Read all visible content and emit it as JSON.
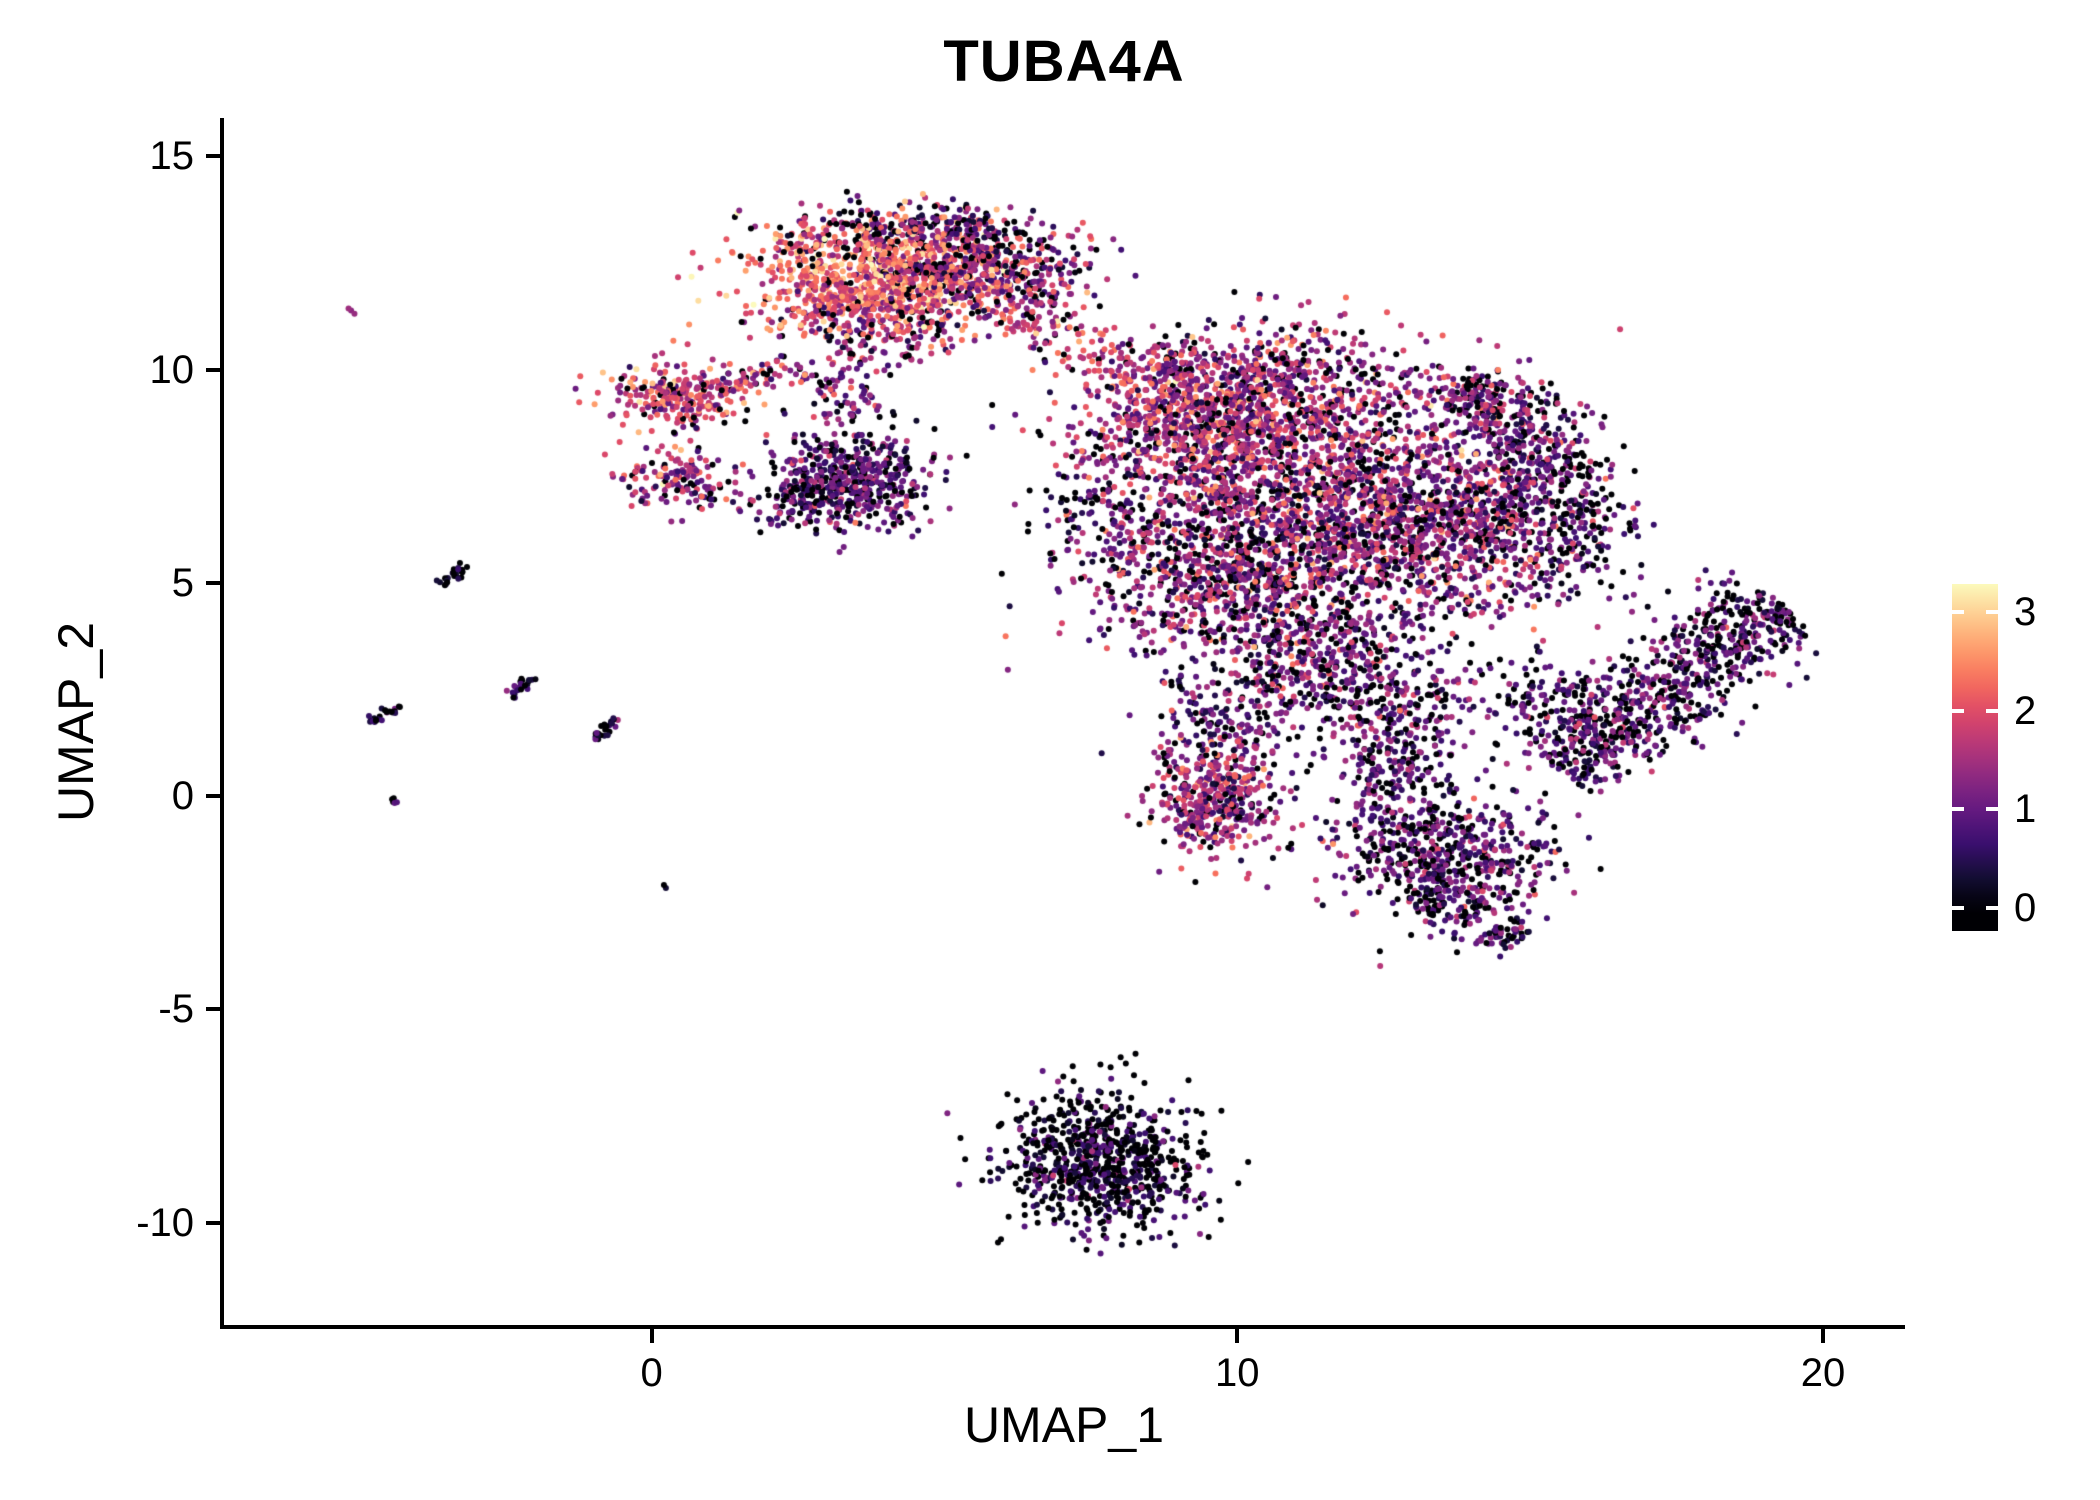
{
  "chart_data": {
    "type": "scatter",
    "title": "TUBA4A",
    "xlabel": "UMAP_1",
    "ylabel": "UMAP_2",
    "x_range": [
      -7.3,
      21.4
    ],
    "y_range": [
      -12.4,
      15.9
    ],
    "x_ticks": [
      0,
      10,
      20
    ],
    "y_ticks": [
      -10,
      -5,
      0,
      5,
      10,
      15
    ],
    "grid": false,
    "background": "#ffffff",
    "point_radius_px": 3,
    "seed": 1337,
    "colormap": {
      "name": "magma",
      "stops": [
        [
          0.0,
          "#000004"
        ],
        [
          0.1,
          "#140e36"
        ],
        [
          0.2,
          "#3b0f70"
        ],
        [
          0.3,
          "#641a80"
        ],
        [
          0.4,
          "#8c2981"
        ],
        [
          0.5,
          "#b73779"
        ],
        [
          0.6,
          "#de4968"
        ],
        [
          0.7,
          "#f7705c"
        ],
        [
          0.8,
          "#fe9f6d"
        ],
        [
          0.9,
          "#fece91"
        ],
        [
          1.0,
          "#fcfdbf"
        ]
      ]
    },
    "color_scale": {
      "vmin": 0,
      "vmax": 3.3
    },
    "legend": {
      "position": "right",
      "ticks": [
        0,
        1,
        2,
        3
      ],
      "bar_vmin": -0.23,
      "bar_vmax": 3.28
    },
    "clusters": [
      {
        "type": "blob",
        "cx": 3.8,
        "cy": 12.2,
        "sx": 1.05,
        "sy": 0.6,
        "n": 900,
        "zero": 0.05,
        "mean": 2.2,
        "sd": 0.5
      },
      {
        "type": "blob",
        "cx": 5.6,
        "cy": 12.4,
        "sx": 0.8,
        "sy": 0.6,
        "n": 380,
        "zero": 0.15,
        "mean": 1.2,
        "sd": 0.6
      },
      {
        "type": "blob",
        "cx": 4.3,
        "cy": 13.3,
        "sx": 1.2,
        "sy": 0.3,
        "n": 220,
        "zero": 0.2,
        "mean": 1.0,
        "sd": 0.6
      },
      {
        "type": "blob",
        "cx": 4.0,
        "cy": 11.0,
        "sx": 0.9,
        "sy": 0.45,
        "n": 220,
        "zero": 0.12,
        "mean": 1.5,
        "sd": 0.6
      },
      {
        "type": "blob",
        "cx": 6.7,
        "cy": 12.1,
        "sx": 0.5,
        "sy": 0.5,
        "n": 70,
        "zero": 0.2,
        "mean": 1.2,
        "sd": 0.5
      },
      {
        "type": "streak",
        "x1": 5.9,
        "y1": 11.5,
        "x2": 8.2,
        "y2": 9.8,
        "w": 0.3,
        "n": 110,
        "zero": 0.08,
        "mean": 1.8,
        "sd": 0.5
      },
      {
        "type": "blob",
        "cx": 0.45,
        "cy": 9.4,
        "sx": 0.55,
        "sy": 0.38,
        "n": 260,
        "zero": 0.1,
        "mean": 1.9,
        "sd": 0.55
      },
      {
        "type": "streak",
        "x1": 1.1,
        "y1": 9.6,
        "x2": 2.6,
        "y2": 10.1,
        "w": 0.18,
        "n": 60,
        "zero": 0.15,
        "mean": 1.5,
        "sd": 0.5
      },
      {
        "type": "blob",
        "cx": 0.5,
        "cy": 7.4,
        "sx": 0.5,
        "sy": 0.38,
        "n": 150,
        "zero": 0.15,
        "mean": 1.5,
        "sd": 0.6
      },
      {
        "type": "blob",
        "cx": 3.4,
        "cy": 7.4,
        "sx": 0.68,
        "sy": 0.58,
        "n": 480,
        "zero": 0.18,
        "mean": 0.95,
        "sd": 0.5
      },
      {
        "type": "blob",
        "cx": 2.5,
        "cy": 7.0,
        "sx": 0.3,
        "sy": 0.4,
        "n": 80,
        "zero": 0.3,
        "mean": 0.6,
        "sd": 0.4
      },
      {
        "type": "blob",
        "cx": 3.3,
        "cy": 9.3,
        "sx": 0.45,
        "sy": 0.7,
        "n": 90,
        "zero": 0.2,
        "mean": 1.1,
        "sd": 0.5
      },
      {
        "type": "blob",
        "cx": 8.7,
        "cy": 10.2,
        "sx": 0.35,
        "sy": 0.4,
        "n": 50,
        "zero": 0.1,
        "mean": 1.5,
        "sd": 0.5
      },
      {
        "type": "blob",
        "cx": 9.4,
        "cy": 8.7,
        "sx": 1.0,
        "sy": 0.9,
        "n": 850,
        "zero": 0.12,
        "mean": 1.55,
        "sd": 0.55
      },
      {
        "type": "blob",
        "cx": 10.8,
        "cy": 9.6,
        "sx": 1.2,
        "sy": 0.75,
        "n": 550,
        "zero": 0.12,
        "mean": 1.45,
        "sd": 0.55
      },
      {
        "type": "blob",
        "cx": 11.8,
        "cy": 6.8,
        "sx": 1.6,
        "sy": 1.2,
        "n": 1400,
        "zero": 0.15,
        "mean": 1.35,
        "sd": 0.6
      },
      {
        "type": "blob",
        "cx": 9.6,
        "cy": 5.2,
        "sx": 1.1,
        "sy": 1.1,
        "n": 700,
        "zero": 0.18,
        "mean": 1.2,
        "sd": 0.6
      },
      {
        "type": "blob",
        "cx": 13.8,
        "cy": 6.2,
        "sx": 1.1,
        "sy": 1.1,
        "n": 600,
        "zero": 0.2,
        "mean": 1.1,
        "sd": 0.55
      },
      {
        "type": "blob",
        "cx": 14.1,
        "cy": 9.3,
        "sx": 0.45,
        "sy": 0.4,
        "n": 160,
        "zero": 0.2,
        "mean": 1.2,
        "sd": 0.55
      },
      {
        "type": "blob",
        "cx": 15.0,
        "cy": 8.2,
        "sx": 0.55,
        "sy": 0.7,
        "n": 260,
        "zero": 0.25,
        "mean": 1.1,
        "sd": 0.5
      },
      {
        "type": "blob",
        "cx": 15.8,
        "cy": 6.3,
        "sx": 0.45,
        "sy": 0.8,
        "n": 180,
        "zero": 0.35,
        "mean": 0.8,
        "sd": 0.5
      },
      {
        "type": "blob",
        "cx": 7.8,
        "cy": 6.8,
        "sx": 0.6,
        "sy": 0.8,
        "n": 120,
        "zero": 0.35,
        "mean": 0.8,
        "sd": 0.5
      },
      {
        "type": "blob",
        "cx": 11.3,
        "cy": 3.4,
        "sx": 1.0,
        "sy": 0.8,
        "n": 450,
        "zero": 0.22,
        "mean": 1.1,
        "sd": 0.55
      },
      {
        "type": "blob",
        "cx": 12.6,
        "cy": 1.8,
        "sx": 0.8,
        "sy": 0.8,
        "n": 300,
        "zero": 0.25,
        "mean": 1.0,
        "sd": 0.5
      },
      {
        "type": "blob",
        "cx": 9.7,
        "cy": 1.6,
        "sx": 0.6,
        "sy": 0.6,
        "n": 140,
        "zero": 0.25,
        "mean": 1.0,
        "sd": 0.5
      },
      {
        "type": "blob",
        "cx": 9.6,
        "cy": -0.1,
        "sx": 0.55,
        "sy": 0.65,
        "n": 400,
        "zero": 0.12,
        "mean": 1.4,
        "sd": 0.6
      },
      {
        "type": "blob",
        "cx": 12.6,
        "cy": 0.3,
        "sx": 0.4,
        "sy": 0.5,
        "n": 90,
        "zero": 0.25,
        "mean": 0.9,
        "sd": 0.5
      },
      {
        "type": "blob",
        "cx": 13.5,
        "cy": -1.3,
        "sx": 1.0,
        "sy": 0.75,
        "n": 550,
        "zero": 0.25,
        "mean": 0.95,
        "sd": 0.5
      },
      {
        "type": "streak",
        "x1": 13.2,
        "y1": -2.2,
        "x2": 14.8,
        "y2": -3.5,
        "w": 0.35,
        "n": 140,
        "zero": 0.3,
        "mean": 0.8,
        "sd": 0.45
      },
      {
        "type": "blob",
        "cx": 15.0,
        "cy": 2.3,
        "sx": 0.5,
        "sy": 0.6,
        "n": 90,
        "zero": 0.3,
        "mean": 0.8,
        "sd": 0.45
      },
      {
        "type": "streak",
        "x1": 15.4,
        "y1": 0.7,
        "x2": 19.3,
        "y2": 4.5,
        "w": 0.55,
        "n": 800,
        "zero": 0.3,
        "mean": 0.85,
        "sd": 0.5
      },
      {
        "type": "blob",
        "cx": 7.7,
        "cy": -8.6,
        "sx": 0.85,
        "sy": 0.8,
        "n": 800,
        "zero": 0.45,
        "mean": 0.5,
        "sd": 0.45
      },
      {
        "type": "streak",
        "x1": -3.6,
        "y1": 4.95,
        "x2": -3.15,
        "y2": 5.4,
        "w": 0.06,
        "n": 26,
        "zero": 0.45,
        "mean": 0.6,
        "sd": 0.35
      },
      {
        "type": "streak",
        "x1": -2.45,
        "y1": 2.35,
        "x2": -2.0,
        "y2": 2.8,
        "w": 0.06,
        "n": 22,
        "zero": 0.45,
        "mean": 0.6,
        "sd": 0.35
      },
      {
        "type": "streak",
        "x1": -4.8,
        "y1": 1.7,
        "x2": -4.35,
        "y2": 2.15,
        "w": 0.06,
        "n": 24,
        "zero": 0.45,
        "mean": 0.55,
        "sd": 0.35
      },
      {
        "type": "streak",
        "x1": -1.0,
        "y1": 1.35,
        "x2": -0.55,
        "y2": 1.8,
        "w": 0.06,
        "n": 24,
        "zero": 0.45,
        "mean": 0.6,
        "sd": 0.35
      },
      {
        "type": "blob",
        "cx": -5.15,
        "cy": 11.4,
        "sx": 0.06,
        "sy": 0.06,
        "n": 3,
        "zero": 0.0,
        "mean": 1.3,
        "sd": 0.3
      },
      {
        "type": "blob",
        "cx": -4.45,
        "cy": -0.1,
        "sx": 0.07,
        "sy": 0.07,
        "n": 5,
        "zero": 0.5,
        "mean": 0.6,
        "sd": 0.3
      },
      {
        "type": "blob",
        "cx": 0.2,
        "cy": -2.1,
        "sx": 0.04,
        "sy": 0.04,
        "n": 2,
        "zero": 0.8,
        "mean": 0.3,
        "sd": 0.2
      }
    ]
  }
}
